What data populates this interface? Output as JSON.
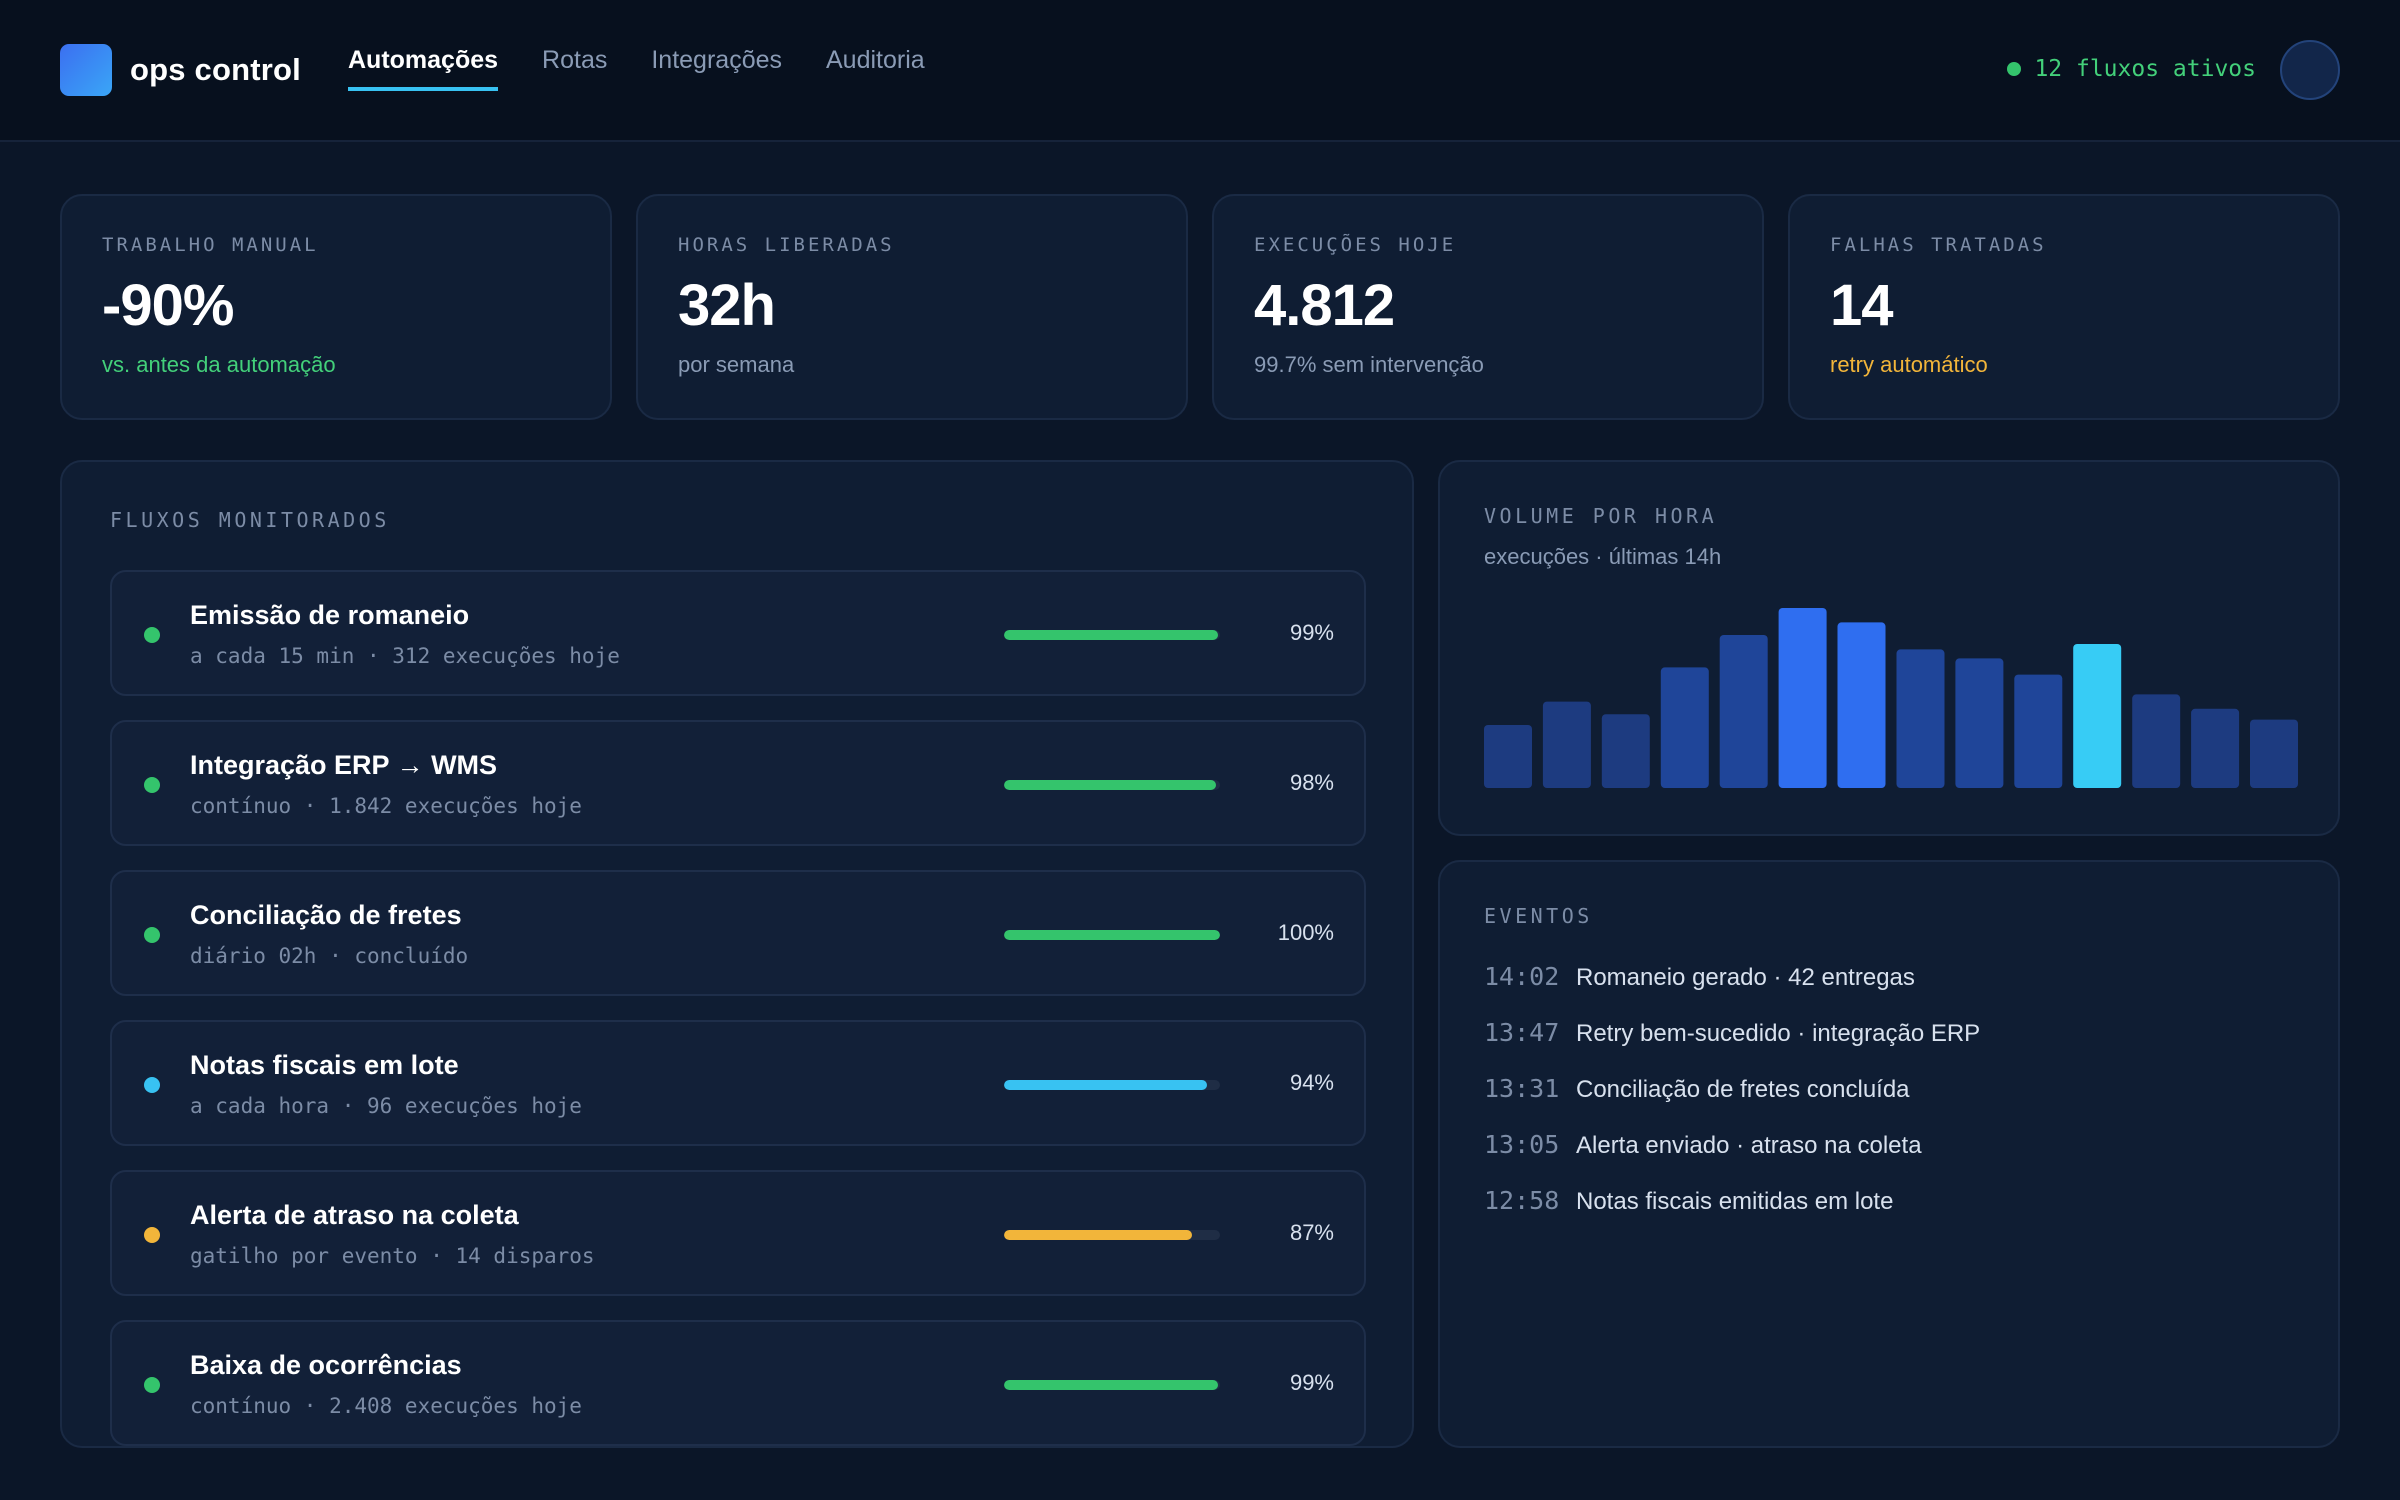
{
  "header": {
    "brand": "ops control",
    "tabs": [
      {
        "label": "Automações",
        "active": true
      },
      {
        "label": "Rotas",
        "active": false
      },
      {
        "label": "Integrações",
        "active": false
      },
      {
        "label": "Auditoria",
        "active": false
      }
    ],
    "status_text": "12 fluxos ativos",
    "status_color": "#34c46c"
  },
  "kpis": [
    {
      "label": "TRABALHO MANUAL",
      "value": "-90%",
      "note": "vs. antes da automação",
      "note_tone": "green"
    },
    {
      "label": "HORAS LIBERADAS",
      "value": "32h",
      "note": "por semana",
      "note_tone": "muted"
    },
    {
      "label": "EXECUÇÕES HOJE",
      "value": "4.812",
      "note": "99.7% sem intervenção",
      "note_tone": "muted"
    },
    {
      "label": "FALHAS TRATADAS",
      "value": "14",
      "note": "retry automático",
      "note_tone": "amber"
    }
  ],
  "flows": {
    "label": "FLUXOS MONITORADOS",
    "items": [
      {
        "name": "Emissão de romaneio",
        "sub": "a cada 15 min · 312 execuções hoje",
        "percent_text": "99%",
        "progress": 99,
        "status_color": "#34c46c"
      },
      {
        "name": "Integração ERP → WMS",
        "sub": "contínuo · 1.842 execuções hoje",
        "percent_text": "98%",
        "progress": 98,
        "status_color": "#34c46c"
      },
      {
        "name": "Conciliação de fretes",
        "sub": "diário 02h · concluído",
        "percent_text": "100%",
        "progress": 100,
        "status_color": "#34c46c"
      },
      {
        "name": "Notas fiscais em lote",
        "sub": "a cada hora · 96 execuções hoje",
        "percent_text": "94%",
        "progress": 94,
        "status_color": "#38c2f2"
      },
      {
        "name": "Alerta de atraso na coleta",
        "sub": "gatilho por evento · 14 disparos",
        "percent_text": "87%",
        "progress": 87,
        "status_color": "#f2b53a"
      },
      {
        "name": "Baixa de ocorrências",
        "sub": "contínuo · 2.408 execuções hoje",
        "percent_text": "99%",
        "progress": 99,
        "status_color": "#34c46c"
      }
    ]
  },
  "volume": {
    "label": "VOLUME POR HORA",
    "subtitle": "execuções · últimas 14h"
  },
  "chart_data": {
    "type": "bar",
    "title": "VOLUME POR HORA",
    "subtitle": "execuções · últimas 14h",
    "xlabel": "",
    "ylabel": "",
    "grid": false,
    "legend": "none",
    "values": [
      35,
      48,
      41,
      67,
      85,
      100,
      92,
      77,
      72,
      63,
      80,
      52,
      44,
      38
    ],
    "colors": [
      "#1d3b80",
      "#1d3b80",
      "#1d3b80",
      "#1f4599",
      "#1f4599",
      "#2f6ef0",
      "#2f6ef0",
      "#1f4599",
      "#1f4599",
      "#1f4599",
      "#37ccf5",
      "#1d3b80",
      "#1d3b80",
      "#1d3b80"
    ],
    "ylim": [
      0,
      100
    ]
  },
  "events": {
    "label": "EVENTOS",
    "items": [
      {
        "time": "14:02",
        "text": "Romaneio gerado · 42 entregas"
      },
      {
        "time": "13:47",
        "text": "Retry bem-sucedido · integração ERP"
      },
      {
        "time": "13:31",
        "text": "Conciliação de fretes concluída"
      },
      {
        "time": "13:05",
        "text": "Alerta enviado · atraso na coleta"
      },
      {
        "time": "12:58",
        "text": "Notas fiscais emitidas em lote"
      }
    ]
  }
}
